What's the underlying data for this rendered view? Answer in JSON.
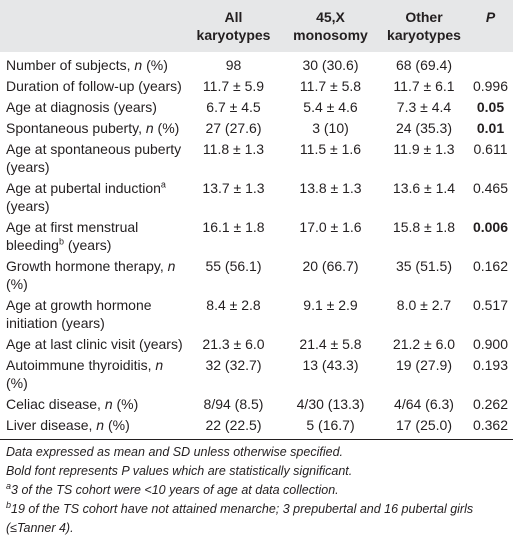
{
  "header": {
    "col0": "",
    "col1": "All karyotypes",
    "col2": "45,X monosomy",
    "col3": "Other karyotypes",
    "col4": "P"
  },
  "rows": [
    {
      "label": "Number of subjects, ",
      "label_italic": "n",
      "label_tail": " (%)",
      "sup": "",
      "label_tail2": "",
      "all": "98",
      "mono": "30 (30.6)",
      "other": "68 (69.4)",
      "p": "",
      "p_bold": false
    },
    {
      "label": "Duration of follow-up (years)",
      "label_italic": "",
      "label_tail": "",
      "sup": "",
      "label_tail2": "",
      "all": "11.7 ± 5.9",
      "mono": "11.7 ± 5.8",
      "other": "11.7 ± 6.1",
      "p": "0.996",
      "p_bold": false
    },
    {
      "label": "Age at diagnosis (years)",
      "label_italic": "",
      "label_tail": "",
      "sup": "",
      "label_tail2": "",
      "all": "6.7 ± 4.5",
      "mono": "5.4 ± 4.6",
      "other": "7.3 ± 4.4",
      "p": "0.05",
      "p_bold": true
    },
    {
      "label": "Spontaneous puberty, ",
      "label_italic": "n",
      "label_tail": " (%)",
      "sup": "",
      "label_tail2": "",
      "all": "27 (27.6)",
      "mono": "3 (10)",
      "other": "24 (35.3)",
      "p": "0.01",
      "p_bold": true
    },
    {
      "label": "Age at spontaneous puberty (years)",
      "label_italic": "",
      "label_tail": "",
      "sup": "",
      "label_tail2": "",
      "all": "11.8 ± 1.3",
      "mono": "11.5 ± 1.6",
      "other": "11.9 ± 1.3",
      "p": "0.611",
      "p_bold": false
    },
    {
      "label": "Age at pubertal induction",
      "label_italic": "",
      "label_tail": "",
      "sup": "a",
      "label_tail2": " (years)",
      "all": "13.7 ± 1.3",
      "mono": "13.8 ± 1.3",
      "other": "13.6 ± 1.4",
      "p": "0.465",
      "p_bold": false
    },
    {
      "label": "Age at first menstrual bleeding",
      "label_italic": "",
      "label_tail": "",
      "sup": "b",
      "label_tail2": " (years)",
      "all": "16.1 ± 1.8",
      "mono": "17.0 ± 1.6",
      "other": "15.8 ± 1.8",
      "p": "0.006",
      "p_bold": true
    },
    {
      "label": "Growth hormone therapy, ",
      "label_italic": "n",
      "label_tail": " (%)",
      "sup": "",
      "label_tail2": "",
      "all": "55 (56.1)",
      "mono": "20 (66.7)",
      "other": "35 (51.5)",
      "p": "0.162",
      "p_bold": false
    },
    {
      "label": "Age at growth hormone initiation (years)",
      "label_italic": "",
      "label_tail": "",
      "sup": "",
      "label_tail2": "",
      "all": "8.4 ± 2.8",
      "mono": "9.1 ± 2.9",
      "other": "8.0 ± 2.7",
      "p": "0.517",
      "p_bold": false
    },
    {
      "label": "Age at last clinic visit (years)",
      "label_italic": "",
      "label_tail": "",
      "sup": "",
      "label_tail2": "",
      "all": "21.3 ± 6.0",
      "mono": "21.4 ± 5.8",
      "other": "21.2 ± 6.0",
      "p": "0.900",
      "p_bold": false
    },
    {
      "label": "Autoimmune thyroiditis, ",
      "label_italic": "n",
      "label_tail": " (%)",
      "sup": "",
      "label_tail2": "",
      "all": "32 (32.7)",
      "mono": "13 (43.3)",
      "other": "19 (27.9)",
      "p": "0.193",
      "p_bold": false
    },
    {
      "label": "Celiac disease, ",
      "label_italic": "n",
      "label_tail": " (%)",
      "sup": "",
      "label_tail2": "",
      "all": "8/94 (8.5)",
      "mono": "4/30 (13.3)",
      "other": "4/64 (6.3)",
      "p": "0.262",
      "p_bold": false
    },
    {
      "label": "Liver disease, ",
      "label_italic": "n",
      "label_tail": " (%)",
      "sup": "",
      "label_tail2": "",
      "all": "22 (22.5)",
      "mono": "5 (16.7)",
      "other": "17 (25.0)",
      "p": "0.362",
      "p_bold": false
    }
  ],
  "notes": {
    "n1": "Data expressed as mean and SD unless otherwise specified.",
    "n2": "Bold font represents P values which are statistically significant.",
    "n3_sup": "a",
    "n3": "3 of the TS cohort were <10 years of age at data collection.",
    "n4_sup": "b",
    "n4": "19 of the TS cohort have not attained menarche; 3 prepubertal and 16 pubertal girls (≤Tanner 4)."
  }
}
